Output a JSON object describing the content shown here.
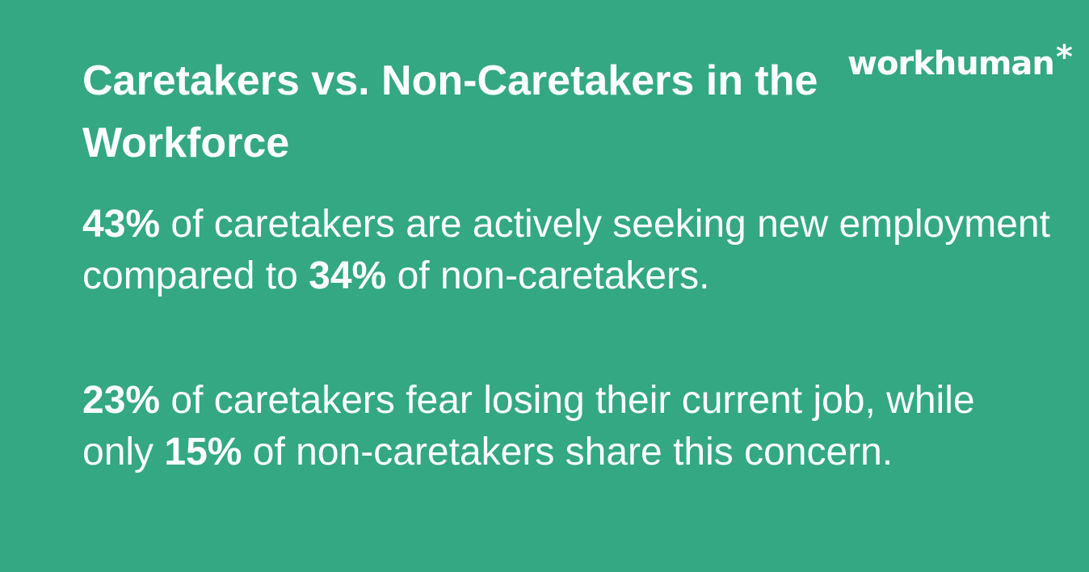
{
  "title": "Caretakers vs. Non-Caretakers in the Workforce",
  "logo": {
    "text": "workhuman",
    "mark": "*"
  },
  "colors": {
    "background": "#33a883",
    "text": "#ffffff"
  },
  "stats": [
    {
      "v1": "43%",
      "t1": " of caretakers are actively seeking new employment compared to ",
      "v2": "34%",
      "t2": " of non-caretakers."
    },
    {
      "v1": "23%",
      "t1": " of caretakers fear losing their current job, while only ",
      "v2": "15%",
      "t2": " of non-caretakers share this concern."
    }
  ]
}
